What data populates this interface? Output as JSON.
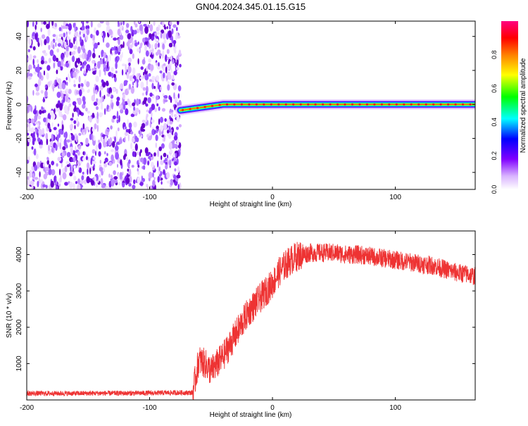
{
  "figure_title": "GN04.2024.345.01.15.G15",
  "chart_data": [
    {
      "type": "heatmap",
      "xlabel": "Height of straight line (km)",
      "ylabel": "Frequency (Hz)",
      "xlim": [
        -200,
        165
      ],
      "ylim": [
        -50,
        49
      ],
      "x_ticks": [
        -200,
        -100,
        0,
        100
      ],
      "y_ticks": [
        -40,
        -20,
        0,
        20,
        40
      ],
      "noise_region_x": [
        -200,
        -75
      ],
      "signal_track": {
        "x": [
          -75,
          -70,
          -60,
          -50,
          -40,
          -30,
          -20,
          -10,
          0,
          10,
          20,
          40,
          60,
          80,
          100,
          120,
          140,
          165
        ],
        "frequency": [
          -3.5,
          -3,
          -2,
          -1,
          0,
          0,
          0,
          0,
          0,
          0,
          0,
          0,
          0,
          0,
          0,
          0,
          0,
          0
        ]
      },
      "colorbar": {
        "label": "Normalized spectral amplitude",
        "range": [
          0,
          1
        ],
        "ticks": [
          0.0,
          0.2,
          0.4,
          0.6,
          0.8
        ],
        "colors": [
          "#ffffff",
          "#8000ff",
          "#0000ff",
          "#00ffff",
          "#00ff00",
          "#ffff00",
          "#ff8000",
          "#ff0000",
          "#ff0080"
        ]
      }
    },
    {
      "type": "line",
      "xlabel": "Height of straight line (km)",
      "ylabel": "SNR (10 * v/v)",
      "xlim": [
        -200,
        165
      ],
      "ylim": [
        0,
        4650
      ],
      "x_ticks": [
        -200,
        -100,
        0,
        100
      ],
      "y_ticks": [
        1000,
        2000,
        3000,
        4000
      ],
      "series": [
        {
          "color": "#ee3333",
          "x": [
            -200,
            -180,
            -160,
            -140,
            -120,
            -100,
            -80,
            -65,
            -62,
            -60,
            -55,
            -50,
            -45,
            -40,
            -35,
            -30,
            -25,
            -20,
            -15,
            -10,
            -5,
            0,
            5,
            10,
            15,
            20,
            25,
            30,
            40,
            50,
            60,
            70,
            80,
            90,
            100,
            110,
            120,
            130,
            140,
            150,
            160,
            165
          ],
          "y": [
            180,
            180,
            180,
            185,
            185,
            190,
            200,
            200,
            700,
            1100,
            1000,
            800,
            1000,
            1200,
            1500,
            1800,
            2100,
            2400,
            2600,
            2800,
            3000,
            3200,
            3500,
            3700,
            3850,
            3950,
            4000,
            4050,
            4050,
            4050,
            4000,
            4000,
            3950,
            3900,
            3850,
            3800,
            3750,
            3700,
            3600,
            3500,
            3450,
            3400
          ]
        }
      ]
    }
  ]
}
